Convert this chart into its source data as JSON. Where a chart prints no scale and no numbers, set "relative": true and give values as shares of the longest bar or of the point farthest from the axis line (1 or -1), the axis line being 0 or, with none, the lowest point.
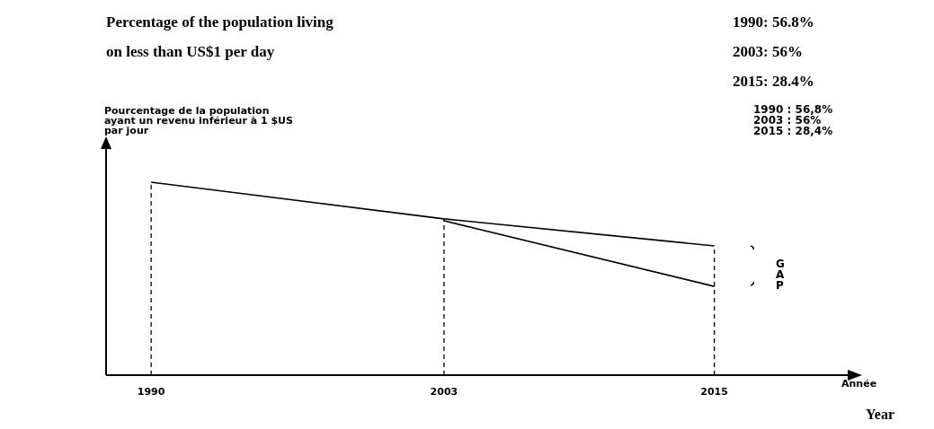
{
  "chart_data": {
    "type": "line",
    "relative": true,
    "title": "Percentage of the population living on less than US$1 per day",
    "ylabel": "Pourcentage de la population ayant un revenu inférieur à 1 $US par jour",
    "xlabel": "Année",
    "xlim": [
      1988,
      2021
    ],
    "xticks": [
      1990,
      2003,
      2015
    ],
    "series": [
      {
        "color": "#000000",
        "x": [
          1990,
          2003,
          2015
        ],
        "values": [
          1,
          0.81,
          0.67
        ]
      },
      {
        "color": "#000000",
        "x": [
          2003,
          2015
        ],
        "values": [
          0.8,
          0.46
        ]
      }
    ],
    "ref_lines": [
      {
        "axis": "x",
        "value": 1990,
        "line_style": "dashed",
        "color": "#000000"
      },
      {
        "axis": "x",
        "value": 2003,
        "line_style": "dashed",
        "color": "#000000"
      },
      {
        "axis": "x",
        "value": 2015,
        "line_style": "dashed",
        "color": "#000000"
      }
    ],
    "line_style": "solid",
    "grid": false,
    "legend": false,
    "annotations": [
      "1990: 56.8%",
      "2003: 56%",
      "2015: 28.4%",
      "1990 : 56,8%",
      "2003 : 56%",
      "2015 : 28,4%",
      "GAP",
      "Year"
    ]
  }
}
